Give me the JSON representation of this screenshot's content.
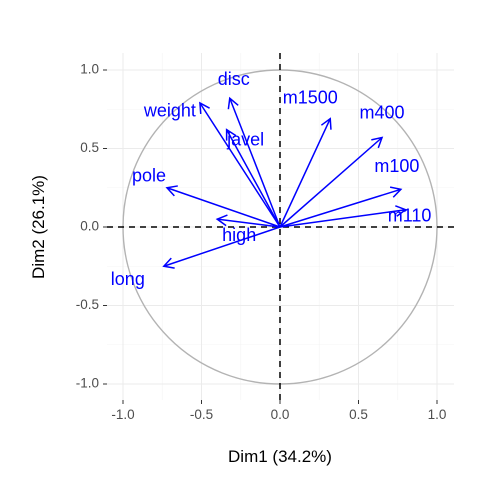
{
  "chart_data": {
    "type": "scatter",
    "subtype": "pca-variable-correlation-circle",
    "title": "",
    "xlabel": "Dim1 (34.2%)",
    "ylabel": "Dim2 (26.1%)",
    "xlim": [
      -1.1,
      1.05
    ],
    "ylim": [
      -1.1,
      1.1
    ],
    "x_ticks": [
      -1.0,
      -0.5,
      0.0,
      0.5,
      1.0
    ],
    "y_ticks": [
      -1.0,
      -0.5,
      0.0,
      0.5,
      1.0
    ],
    "x_tick_labels": [
      "-1.0",
      "-0.5",
      "0.0",
      "0.5",
      "1.0"
    ],
    "y_tick_labels": [
      "-1.0",
      "-0.5",
      "0.0",
      "0.5",
      "1.0"
    ],
    "grid": true,
    "unit_circle": true,
    "reference_lines": [
      "x=0",
      "y=0"
    ],
    "arrow_color": "#0000ff",
    "circle_color": "#b3b3b3",
    "variables": [
      {
        "name": "m100",
        "x": 0.77,
        "y": 0.24
      },
      {
        "name": "long",
        "x": -0.74,
        "y": -0.25
      },
      {
        "name": "pole",
        "x": -0.72,
        "y": 0.25
      },
      {
        "name": "weight",
        "x": -0.51,
        "y": 0.79
      },
      {
        "name": "disc",
        "x": -0.32,
        "y": 0.82
      },
      {
        "name": "high",
        "x": -0.4,
        "y": 0.05
      },
      {
        "name": "m400",
        "x": 0.65,
        "y": 0.57
      },
      {
        "name": "m110",
        "x": 0.8,
        "y": 0.11
      },
      {
        "name": "javel",
        "x": -0.34,
        "y": 0.62
      },
      {
        "name": "m1500",
        "x": 0.32,
        "y": 0.69
      }
    ]
  }
}
